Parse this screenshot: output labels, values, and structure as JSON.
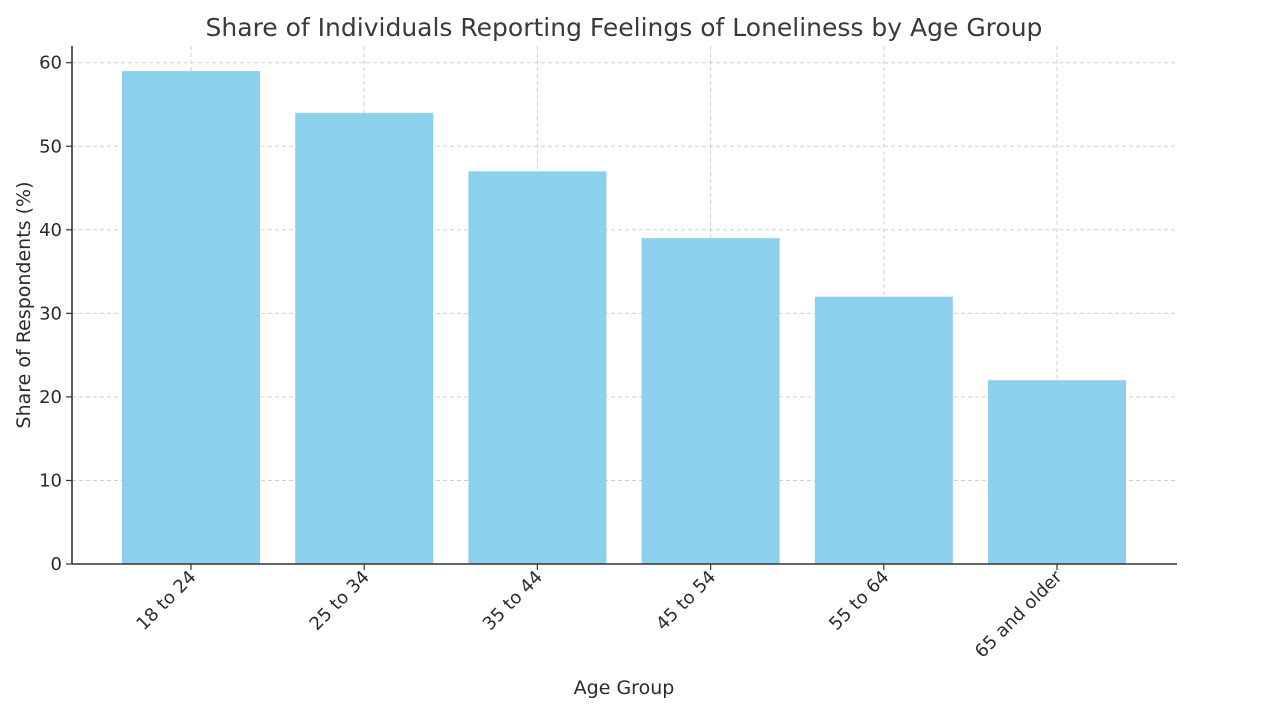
{
  "chart_data": {
    "type": "bar",
    "title": "Share of Individuals Reporting Feelings of Loneliness by Age Group",
    "xlabel": "Age Group",
    "ylabel": "Share of Respondents (%)",
    "categories": [
      "18 to 24",
      "25 to 34",
      "35 to 44",
      "45 to 54",
      "55 to 64",
      "65 and older"
    ],
    "values": [
      59,
      54,
      47,
      39,
      32,
      22
    ],
    "ylim": [
      0,
      62
    ],
    "yticks": [
      0,
      10,
      20,
      30,
      40,
      50,
      60
    ],
    "ytick_labels": [
      "0",
      "10",
      "20",
      "30",
      "40",
      "50",
      "60"
    ],
    "grid": true,
    "bar_color": "#87CEEB"
  }
}
